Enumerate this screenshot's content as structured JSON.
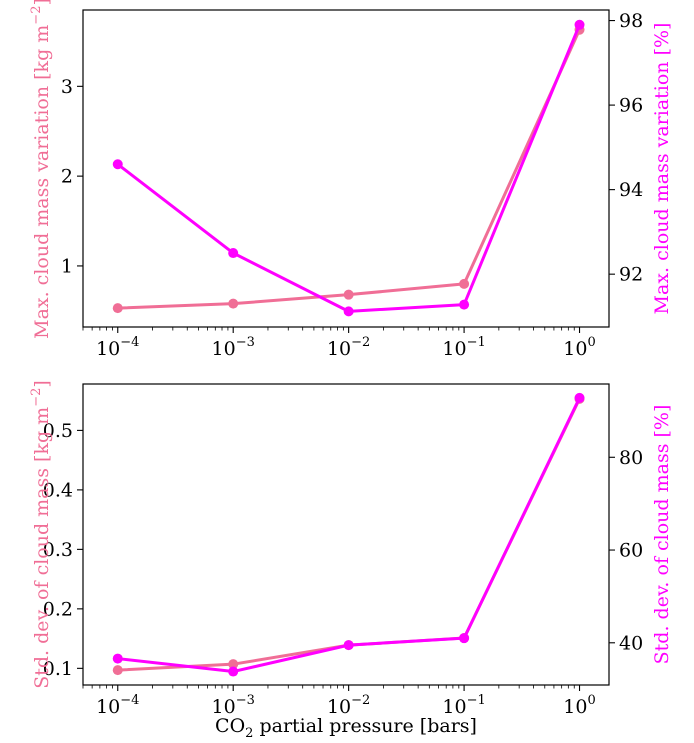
{
  "chart_data": [
    {
      "type": "line",
      "panel": "top",
      "x": [
        0.0001,
        0.001,
        0.01,
        0.1,
        1
      ],
      "xscale": "log",
      "xlim": [
        5e-05,
        1.8
      ],
      "xticks": [
        0.0001,
        0.001,
        0.01,
        0.1,
        1
      ],
      "xtick_labels": [
        {
          "base": "10",
          "exp": "−4"
        },
        {
          "base": "10",
          "exp": "−3"
        },
        {
          "base": "10",
          "exp": "−2"
        },
        {
          "base": "10",
          "exp": "−1"
        },
        {
          "base": "10",
          "exp": "0"
        }
      ],
      "ylabel_left": {
        "text": "Max. cloud mass variation [kg m",
        "sup": "−2",
        "tail": "]"
      },
      "ylabel_right": "Max. cloud mass variation [%]",
      "ylim_left": [
        0.32,
        3.85
      ],
      "yticks_left": [
        1,
        2,
        3
      ],
      "ylim_right": [
        90.75,
        98.25
      ],
      "yticks_right": [
        92,
        94,
        96,
        98
      ],
      "series": [
        {
          "axis": "left",
          "color": "#f06e96",
          "values": [
            0.53,
            0.58,
            0.68,
            0.8,
            3.63
          ]
        },
        {
          "axis": "right",
          "color": "#ff00ff",
          "values": [
            94.6,
            92.5,
            91.12,
            91.28,
            97.9
          ]
        }
      ],
      "grid": false
    },
    {
      "type": "line",
      "panel": "bottom",
      "x": [
        0.0001,
        0.001,
        0.01,
        0.1,
        1
      ],
      "xscale": "log",
      "xlim": [
        5e-05,
        1.8
      ],
      "xticks": [
        0.0001,
        0.001,
        0.01,
        0.1,
        1
      ],
      "xtick_labels": [
        {
          "base": "10",
          "exp": "−4"
        },
        {
          "base": "10",
          "exp": "−3"
        },
        {
          "base": "10",
          "exp": "−2"
        },
        {
          "base": "10",
          "exp": "−1"
        },
        {
          "base": "10",
          "exp": "0"
        }
      ],
      "xlabel": {
        "pre": "CO",
        "sub": "2",
        "post": " partial pressure [bars]"
      },
      "ylabel_left": {
        "text": "Std. dev. of cloud mass [kg m",
        "sup": "−2",
        "tail": "]"
      },
      "ylabel_right": "Std. dev. of cloud mass [%]",
      "ylim_left": [
        0.072,
        0.578
      ],
      "yticks_left": [
        0.1,
        0.2,
        0.3,
        0.4,
        0.5
      ],
      "ylim_right": [
        30.9,
        95.8
      ],
      "yticks_right": [
        40,
        60,
        80
      ],
      "series": [
        {
          "axis": "left",
          "color": "#f06e96",
          "values": [
            0.097,
            0.107,
            0.139,
            0.151,
            0.553
          ]
        },
        {
          "axis": "right",
          "color": "#ff00ff",
          "values": [
            36.6,
            33.8,
            39.5,
            41.0,
            92.8
          ]
        }
      ],
      "grid": false
    }
  ]
}
